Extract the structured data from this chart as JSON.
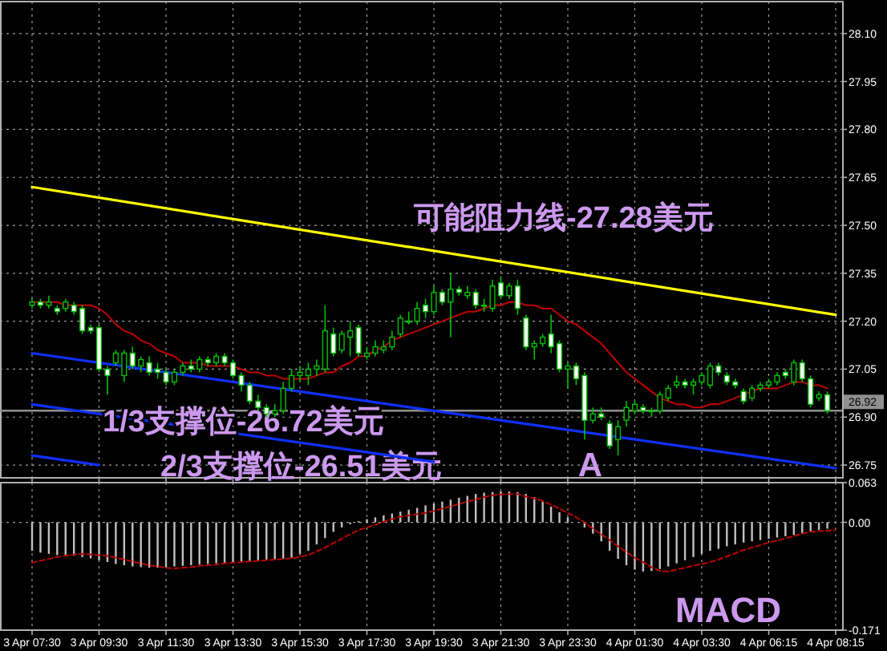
{
  "chart_data": [
    {
      "type": "candlestick",
      "categories": [
        "3 Apr 07:30",
        null,
        null,
        null,
        null,
        null,
        null,
        null,
        "3 Apr 09:30",
        null,
        null,
        null,
        null,
        null,
        null,
        null,
        "3 Apr 11:30",
        null,
        null,
        null,
        null,
        null,
        null,
        null,
        "3 Apr 13:30",
        null,
        null,
        null,
        null,
        null,
        null,
        null,
        "3 Apr 15:30",
        null,
        null,
        null,
        null,
        null,
        null,
        null,
        "3 Apr 17:30",
        null,
        null,
        null,
        null,
        null,
        null,
        null,
        "3 Apr 19:30",
        null,
        null,
        null,
        null,
        null,
        null,
        null,
        "3 Apr 21:30",
        null,
        null,
        null,
        null,
        null,
        null,
        null,
        "3 Apr 23:30",
        null,
        null,
        null,
        null,
        null,
        null,
        null,
        "4 Apr 01:30",
        null,
        null,
        null,
        null,
        null,
        null,
        null,
        "4 Apr 03:30",
        null,
        null,
        null,
        null,
        null,
        null,
        null,
        "4 Apr 06:15",
        null,
        null,
        null,
        null,
        null,
        null,
        null,
        "4 Apr 08:15"
      ],
      "color": "#00c000",
      "ohlc": [
        [
          27.25,
          27.27,
          27.24,
          27.26
        ],
        [
          27.26,
          27.27,
          27.24,
          27.25
        ],
        [
          27.25,
          27.28,
          27.24,
          27.26
        ],
        [
          27.24,
          27.25,
          27.22,
          27.23
        ],
        [
          27.24,
          27.27,
          27.23,
          27.26
        ],
        [
          27.25,
          27.26,
          27.22,
          27.23
        ],
        [
          27.24,
          27.25,
          27.16,
          27.17
        ],
        [
          27.18,
          27.19,
          27.16,
          27.17
        ],
        [
          27.18,
          27.19,
          27.04,
          27.05
        ],
        [
          27.05,
          27.06,
          26.97,
          27.03
        ],
        [
          27.07,
          27.11,
          27.06,
          27.1
        ],
        [
          27.03,
          27.11,
          27.01,
          27.1
        ],
        [
          27.1,
          27.12,
          27.05,
          27.06
        ],
        [
          27.06,
          27.09,
          27.04,
          27.08
        ],
        [
          27.07,
          27.09,
          27.03,
          27.04
        ],
        [
          27.05,
          27.07,
          27.02,
          27.04
        ],
        [
          27.04,
          27.05,
          27.0,
          27.01
        ],
        [
          27.01,
          27.05,
          27.0,
          27.04
        ],
        [
          27.04,
          27.07,
          27.03,
          27.06
        ],
        [
          27.06,
          27.08,
          27.04,
          27.05
        ],
        [
          27.05,
          27.09,
          27.04,
          27.08
        ],
        [
          27.08,
          27.09,
          27.06,
          27.07
        ],
        [
          27.07,
          27.1,
          27.06,
          27.09
        ],
        [
          27.09,
          27.1,
          27.06,
          27.07
        ],
        [
          27.07,
          27.08,
          27.02,
          27.03
        ],
        [
          27.03,
          27.04,
          26.98,
          27.0
        ],
        [
          27.0,
          27.01,
          26.94,
          26.95
        ],
        [
          26.95,
          26.97,
          26.92,
          26.93
        ],
        [
          26.93,
          26.94,
          26.9,
          26.91
        ],
        [
          26.91,
          26.94,
          26.9,
          26.92
        ],
        [
          26.92,
          27.01,
          26.91,
          26.99
        ],
        [
          26.99,
          27.05,
          26.98,
          27.03
        ],
        [
          27.03,
          27.06,
          27.01,
          27.04
        ],
        [
          27.03,
          27.07,
          27.0,
          27.05
        ],
        [
          27.05,
          27.08,
          27.03,
          27.06
        ],
        [
          27.05,
          27.25,
          27.04,
          27.17
        ],
        [
          27.16,
          27.18,
          27.09,
          27.1
        ],
        [
          27.11,
          27.17,
          27.1,
          27.16
        ],
        [
          27.15,
          27.2,
          27.09,
          27.17
        ],
        [
          27.18,
          27.19,
          27.09,
          27.1
        ],
        [
          27.09,
          27.12,
          27.08,
          27.1
        ],
        [
          27.1,
          27.14,
          27.09,
          27.12
        ],
        [
          27.11,
          27.14,
          27.1,
          27.12
        ],
        [
          27.12,
          27.17,
          27.11,
          27.15
        ],
        [
          27.16,
          27.22,
          27.15,
          27.21
        ],
        [
          27.2,
          27.23,
          27.19,
          27.2
        ],
        [
          27.2,
          27.26,
          27.19,
          27.24
        ],
        [
          27.25,
          27.27,
          27.21,
          27.23
        ],
        [
          27.23,
          27.31,
          27.22,
          27.29
        ],
        [
          27.29,
          27.3,
          27.25,
          27.26
        ],
        [
          27.26,
          27.35,
          27.15,
          27.3
        ],
        [
          27.3,
          27.31,
          27.28,
          27.29
        ],
        [
          27.28,
          27.31,
          27.27,
          27.29
        ],
        [
          27.29,
          27.3,
          27.24,
          27.25
        ],
        [
          27.25,
          27.27,
          27.23,
          27.25
        ],
        [
          27.24,
          27.33,
          27.23,
          27.31
        ],
        [
          27.32,
          27.34,
          27.27,
          27.28
        ],
        [
          27.28,
          27.32,
          27.27,
          27.31
        ],
        [
          27.31,
          27.33,
          27.22,
          27.24
        ],
        [
          27.21,
          27.22,
          27.11,
          27.12
        ],
        [
          27.12,
          27.14,
          27.08,
          27.13
        ],
        [
          27.13,
          27.16,
          27.12,
          27.15
        ],
        [
          27.16,
          27.22,
          27.1,
          27.12
        ],
        [
          27.13,
          27.14,
          27.04,
          27.05
        ],
        [
          27.05,
          27.07,
          26.99,
          27.06
        ],
        [
          27.06,
          27.07,
          27.0,
          27.02
        ],
        [
          27.03,
          27.04,
          26.83,
          26.89
        ],
        [
          26.89,
          26.93,
          26.88,
          26.91
        ],
        [
          26.91,
          26.93,
          26.89,
          26.9
        ],
        [
          26.88,
          26.89,
          26.8,
          26.81
        ],
        [
          26.83,
          26.89,
          26.78,
          26.87
        ],
        [
          26.89,
          26.95,
          26.87,
          26.93
        ],
        [
          26.92,
          26.95,
          26.91,
          26.94
        ],
        [
          26.93,
          26.94,
          26.91,
          26.92
        ],
        [
          26.92,
          26.93,
          26.9,
          26.92
        ],
        [
          26.92,
          26.98,
          26.91,
          26.97
        ],
        [
          26.96,
          27.0,
          26.95,
          26.99
        ],
        [
          27.0,
          27.03,
          26.99,
          27.01
        ],
        [
          27.01,
          27.02,
          26.99,
          27.0
        ],
        [
          27.0,
          27.02,
          26.97,
          27.01
        ],
        [
          27.01,
          27.04,
          27.0,
          27.03
        ],
        [
          27.0,
          27.07,
          26.99,
          27.06
        ],
        [
          27.06,
          27.07,
          27.03,
          27.04
        ],
        [
          27.03,
          27.04,
          27.0,
          27.01
        ],
        [
          27.01,
          27.02,
          26.99,
          27.0
        ],
        [
          26.98,
          26.99,
          26.94,
          26.95
        ],
        [
          26.96,
          27.0,
          26.95,
          26.99
        ],
        [
          26.99,
          27.01,
          26.98,
          27.0
        ],
        [
          27.0,
          27.02,
          26.99,
          27.01
        ],
        [
          27.01,
          27.04,
          27.0,
          27.03
        ],
        [
          27.04,
          27.05,
          27.02,
          27.03
        ],
        [
          27.01,
          27.08,
          27.0,
          27.07
        ],
        [
          27.07,
          27.08,
          27.01,
          27.02
        ],
        [
          27.02,
          27.03,
          26.93,
          26.94
        ],
        [
          26.96,
          26.98,
          26.95,
          26.97
        ],
        [
          26.97,
          26.98,
          26.91,
          26.92
        ],
        null
      ],
      "series": [
        {
          "type": "line",
          "color": "#c00000",
          "values": [
            27.26,
            27.26,
            27.26,
            27.26,
            27.25,
            27.25,
            27.25,
            27.25,
            27.24,
            27.22,
            27.19,
            27.17,
            27.16,
            27.14,
            27.13,
            27.11,
            27.1,
            27.09,
            27.07,
            27.07,
            27.07,
            27.06,
            27.06,
            27.06,
            27.06,
            27.05,
            27.04,
            27.04,
            27.03,
            27.03,
            27.02,
            27.02,
            27.02,
            27.02,
            27.03,
            27.04,
            27.04,
            27.06,
            27.07,
            27.09,
            27.09,
            27.11,
            27.12,
            27.14,
            27.15,
            27.16,
            27.17,
            27.18,
            27.19,
            27.2,
            27.21,
            27.22,
            27.23,
            27.23,
            27.24,
            27.25,
            27.25,
            27.26,
            27.26,
            27.25,
            27.25,
            27.24,
            27.24,
            27.22,
            27.2,
            27.19,
            27.17,
            27.15,
            27.13,
            27.1,
            27.07,
            27.04,
            27.02,
            27.0,
            26.98,
            26.96,
            26.95,
            26.94,
            26.94,
            26.93,
            26.93,
            26.94,
            26.94,
            26.95,
            26.96,
            26.97,
            26.98,
            26.99,
            26.99,
            26.99,
            27.0,
            27.01,
            27.01,
            27.0,
            27.0,
            26.99,
            null
          ]
        },
        {
          "type": "line",
          "color": "#ffff00",
          "x": [
            "3 Apr 07:30",
            "4 Apr 08:15"
          ],
          "values": [
            27.62,
            27.22
          ]
        },
        {
          "type": "line",
          "color": "#1030ff",
          "x": [
            "3 Apr 07:30",
            "4 Apr 08:15"
          ],
          "values": [
            27.1,
            26.74
          ]
        },
        {
          "type": "line",
          "color": "#1030ff",
          "x": [
            "3 Apr 07:30",
            "3 Apr 19:30"
          ],
          "values": [
            26.94,
            26.76
          ]
        },
        {
          "type": "line",
          "color": "#1030ff",
          "x": [
            "3 Apr 07:30",
            "3 Apr 09:30"
          ],
          "values": [
            26.78,
            26.75
          ]
        }
      ],
      "ylim": [
        26.71,
        28.2
      ],
      "yticks": [
        26.75,
        {
          "value": 26.9,
          "label": "26.90"
        },
        27.05,
        {
          "value": 27.2,
          "label": "27.20"
        },
        27.35,
        {
          "value": 27.5,
          "label": "27.50"
        },
        27.65,
        {
          "value": 27.8,
          "label": "27.80"
        },
        27.95,
        {
          "value": 28.1,
          "label": "28.10"
        }
      ],
      "grid": true,
      "tick_labels": "y",
      "ref_lines": [
        {
          "axis": "y",
          "value": 26.92,
          "label": "26.92",
          "color": "#909090"
        }
      ],
      "annotations": [
        "可能阻力线-27.28美元",
        "1/3支撑位-26.72美元",
        "2/3支撑位-26.51美元",
        "A"
      ]
    },
    {
      "type": "bar",
      "categories": [
        "3 Apr 07:30",
        null,
        null,
        null,
        null,
        null,
        null,
        null,
        "3 Apr 09:30",
        null,
        null,
        null,
        null,
        null,
        null,
        null,
        "3 Apr 11:30",
        null,
        null,
        null,
        null,
        null,
        null,
        null,
        "3 Apr 13:30",
        null,
        null,
        null,
        null,
        null,
        null,
        null,
        "3 Apr 15:30",
        null,
        null,
        null,
        null,
        null,
        null,
        null,
        "3 Apr 17:30",
        null,
        null,
        null,
        null,
        null,
        null,
        null,
        "3 Apr 19:30",
        null,
        null,
        null,
        null,
        null,
        null,
        null,
        "3 Apr 21:30",
        null,
        null,
        null,
        null,
        null,
        null,
        null,
        "3 Apr 23:30",
        null,
        null,
        null,
        null,
        null,
        null,
        null,
        "4 Apr 01:30",
        null,
        null,
        null,
        null,
        null,
        null,
        null,
        "4 Apr 03:30",
        null,
        null,
        null,
        null,
        null,
        null,
        null,
        "4 Apr 06:15",
        null,
        null,
        null,
        null,
        null,
        null,
        null,
        "4 Apr 08:15"
      ],
      "series": [
        {
          "type": "bar",
          "color": "#c0c0c0",
          "values": [
            -0.045,
            -0.048,
            -0.05,
            -0.052,
            -0.052,
            -0.053,
            -0.055,
            -0.057,
            -0.06,
            -0.063,
            -0.066,
            -0.068,
            -0.07,
            -0.071,
            -0.072,
            -0.072,
            -0.071,
            -0.07,
            -0.069,
            -0.068,
            -0.067,
            -0.066,
            -0.065,
            -0.064,
            -0.063,
            -0.062,
            -0.062,
            -0.061,
            -0.06,
            -0.059,
            -0.058,
            -0.056,
            -0.05,
            -0.045,
            -0.035,
            -0.025,
            -0.015,
            -0.008,
            -0.003,
            0.002,
            0.005,
            0.008,
            0.011,
            0.014,
            0.017,
            0.02,
            0.023,
            0.027,
            0.03,
            0.033,
            0.036,
            0.039,
            0.042,
            0.045,
            0.047,
            0.048,
            0.049,
            0.049,
            0.048,
            0.045,
            0.04,
            0.033,
            0.025,
            0.016,
            0.008,
            null,
            -0.008,
            -0.018,
            -0.03,
            -0.045,
            -0.058,
            -0.068,
            -0.075,
            -0.078,
            -0.077,
            -0.074,
            -0.07,
            -0.065,
            -0.06,
            -0.055,
            -0.05,
            -0.045,
            -0.042,
            -0.038,
            -0.035,
            -0.032,
            -0.03,
            -0.028,
            -0.026,
            -0.024,
            -0.022,
            -0.02,
            -0.017,
            -0.015,
            -0.012,
            -0.01,
            null
          ]
        },
        {
          "type": "line",
          "color": "#c00000",
          "line_style": "dashed",
          "values": [
            -0.064,
            -0.061,
            -0.058,
            -0.055,
            -0.053,
            -0.051,
            -0.05,
            -0.051,
            -0.052,
            -0.053,
            -0.056,
            -0.059,
            -0.062,
            -0.065,
            -0.068,
            -0.07,
            -0.072,
            -0.073,
            -0.072,
            -0.071,
            -0.069,
            -0.068,
            -0.067,
            -0.065,
            -0.064,
            -0.063,
            -0.062,
            -0.061,
            -0.06,
            -0.059,
            -0.058,
            -0.057,
            -0.055,
            -0.052,
            -0.046,
            -0.04,
            -0.033,
            -0.026,
            -0.019,
            -0.012,
            -0.008,
            -0.004,
            0.001,
            0.005,
            0.009,
            0.011,
            0.013,
            0.015,
            0.018,
            0.022,
            0.025,
            0.029,
            0.033,
            0.036,
            0.04,
            0.043,
            0.044,
            0.045,
            0.045,
            0.041,
            0.038,
            0.034,
            0.028,
            0.022,
            0.015,
            0.008,
            0.0,
            -0.01,
            -0.019,
            -0.028,
            -0.038,
            -0.047,
            -0.056,
            -0.063,
            -0.071,
            -0.077,
            -0.078,
            -0.075,
            -0.072,
            -0.069,
            -0.066,
            -0.063,
            -0.059,
            -0.054,
            -0.049,
            -0.044,
            -0.04,
            -0.036,
            -0.032,
            -0.029,
            -0.025,
            -0.022,
            -0.018,
            -0.015,
            -0.014,
            -0.013,
            -0.012
          ]
        }
      ],
      "ylim": [
        -0.171,
        0.063
      ],
      "yticks": [
        -0.171,
        {
          "value": 0,
          "label": "0.00"
        },
        0.063
      ],
      "grid": true,
      "annotations": [
        "MACD"
      ]
    }
  ]
}
